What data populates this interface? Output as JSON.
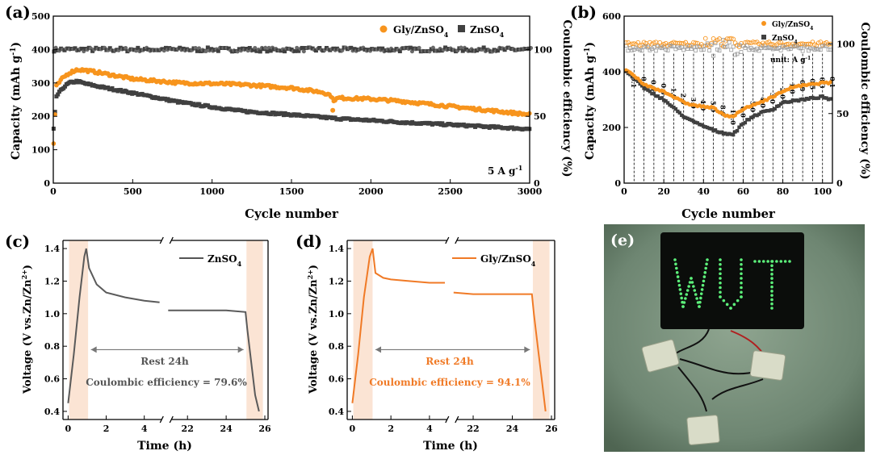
{
  "colors": {
    "gly": "#f7941d",
    "znso4": "#404040",
    "rest": "#fbe4d4",
    "grid": "#000000"
  },
  "panel_a": {
    "label": "(a)",
    "xlabel": "Cycle number",
    "ylabel_left": "Capacity (mAh g",
    "ylabel_left_sup": "-1",
    "ylabel_left_end": ")",
    "ylabel_right": "Coulombic efficiency (%)",
    "rate_label": "5 A g",
    "rate_sup": "-1",
    "legend": [
      {
        "name": "Gly/ZnSO",
        "sub": "4"
      },
      {
        "name": "ZnSO",
        "sub": "4"
      }
    ]
  },
  "panel_b": {
    "label": "(b)",
    "xlabel": "Cycle number",
    "ylabel_left": "Capacity (mAh g",
    "ylabel_left_sup": "-1",
    "ylabel_left_end": ")",
    "ylabel_right": "Coulombic efficiency (%)",
    "unit_note": "unit: A g",
    "unit_sup": "-1",
    "legend": [
      {
        "name": "Gly/ZnSO",
        "sub": "4"
      },
      {
        "name": "ZnSO",
        "sub": "4"
      }
    ]
  },
  "panel_c": {
    "label": "(c)",
    "xlabel": "Time (h)",
    "ylabel": "Voltage (V vs.Zn/Zn",
    "ylabel_sup": "2+",
    "ylabel_end": ")",
    "legend": {
      "name": "ZnSO",
      "sub": "4"
    },
    "rest_label": "Rest 24h",
    "ce_label": "Coulombic efficiency = 79.6%"
  },
  "panel_d": {
    "label": "(d)",
    "xlabel": "Time (h)",
    "ylabel": "Voltage (V vs.Zn/Zn",
    "ylabel_sup": "2+",
    "ylabel_end": ")",
    "legend": {
      "name": "Gly/ZnSO",
      "sub": "4"
    },
    "rest_label": "Rest 24h",
    "ce_label": "Coulombic efficiency = 94.1%"
  },
  "panel_e": {
    "label": "(e)",
    "sign_text": "WUT"
  },
  "chart_data": [
    {
      "panel": "a",
      "type": "scatter",
      "xlim": [
        0,
        3000
      ],
      "ylim": [
        0,
        500
      ],
      "y2lim": [
        0,
        125
      ],
      "xticks": [
        0,
        500,
        1000,
        1500,
        2000,
        2500,
        3000
      ],
      "yticks": [
        0,
        100,
        200,
        300,
        400,
        500
      ],
      "y2ticks": [
        0,
        50,
        100
      ],
      "series": [
        {
          "name": "Gly/ZnSO4",
          "axis": "capacity",
          "x": [
            0,
            20,
            60,
            100,
            150,
            200,
            300,
            500,
            800,
            1000,
            1200,
            1500,
            1700,
            1750,
            1760,
            1800,
            2000,
            2200,
            2500,
            2800,
            3000
          ],
          "y": [
            100,
            290,
            315,
            330,
            340,
            338,
            330,
            312,
            300,
            298,
            295,
            285,
            272,
            262,
            248,
            255,
            252,
            245,
            230,
            215,
            205
          ]
        },
        {
          "name": "ZnSO4",
          "axis": "capacity",
          "x": [
            0,
            20,
            60,
            100,
            150,
            200,
            300,
            500,
            800,
            1000,
            1200,
            1500,
            1800,
            2000,
            2200,
            2500,
            2800,
            3000
          ],
          "y": [
            150,
            260,
            285,
            300,
            305,
            298,
            288,
            270,
            242,
            228,
            215,
            205,
            193,
            188,
            182,
            175,
            167,
            162
          ]
        },
        {
          "name": "Gly/ZnSO4 CE",
          "axis": "ce",
          "x": [
            0,
            3000
          ],
          "y": [
            100,
            100
          ]
        },
        {
          "name": "ZnSO4 CE",
          "axis": "ce",
          "x": [
            0,
            3000
          ],
          "y": [
            100,
            100
          ]
        }
      ],
      "outlier": {
        "x": 1760,
        "y": 218
      }
    },
    {
      "panel": "b",
      "type": "scatter",
      "xlim": [
        0,
        105
      ],
      "ylim": [
        0,
        600
      ],
      "y2lim": [
        0,
        120
      ],
      "xticks": [
        0,
        20,
        40,
        60,
        80,
        100
      ],
      "yticks": [
        0,
        200,
        400,
        600
      ],
      "y2ticks": [
        0,
        50,
        100
      ],
      "rates": [
        "0.1",
        "0.3",
        "0.5",
        "0.8",
        "1.0",
        "2.0",
        "3.0",
        "4.0",
        "5.0",
        "8.0",
        "10.0",
        "8.0",
        "5.0",
        "4.0",
        "3.0",
        "2.0",
        "1.0",
        "0.8",
        "0.5",
        "0.3",
        "0.1"
      ],
      "series": [
        {
          "name": "Gly/ZnSO4",
          "axis": "capacity",
          "x": [
            1,
            5,
            10,
            15,
            20,
            25,
            30,
            35,
            40,
            45,
            50,
            55,
            60,
            65,
            70,
            75,
            80,
            85,
            90,
            95,
            100,
            104
          ],
          "y": [
            405,
            385,
            355,
            340,
            330,
            310,
            290,
            280,
            275,
            270,
            245,
            240,
            265,
            280,
            295,
            310,
            330,
            345,
            350,
            355,
            360,
            360
          ]
        },
        {
          "name": "ZnSO4",
          "axis": "capacity",
          "x": [
            1,
            5,
            10,
            15,
            20,
            25,
            30,
            35,
            40,
            45,
            50,
            55,
            60,
            65,
            70,
            75,
            80,
            85,
            90,
            95,
            100,
            104
          ],
          "y": [
            400,
            380,
            340,
            320,
            300,
            270,
            240,
            220,
            205,
            190,
            180,
            175,
            215,
            240,
            255,
            265,
            290,
            295,
            300,
            305,
            310,
            300
          ]
        },
        {
          "name": "Gly/ZnSO4 CE",
          "axis": "ce",
          "x": [
            0,
            105
          ],
          "y": [
            100,
            100
          ]
        },
        {
          "name": "ZnSO4 CE",
          "axis": "ce",
          "x": [
            0,
            105
          ],
          "y": [
            97,
            97
          ]
        }
      ]
    },
    {
      "panel": "c",
      "type": "line",
      "xticks": [
        "0",
        "2",
        "4",
        "22",
        "24",
        "26"
      ],
      "yticks": [
        0.4,
        0.6,
        0.8,
        1.0,
        1.2,
        1.4
      ],
      "ylim": [
        0.35,
        1.45
      ],
      "series": [
        {
          "name": "ZnSO4",
          "x": [
            0,
            0.3,
            0.6,
            0.85,
            0.95,
            1.1,
            1.5,
            2.0,
            3.0,
            4.0,
            4.8
          ],
          "y": [
            0.45,
            0.75,
            1.1,
            1.35,
            1.4,
            1.28,
            1.18,
            1.13,
            1.1,
            1.08,
            1.07
          ],
          "x2": [
            21,
            22,
            23,
            24,
            25,
            25.1,
            25.3,
            25.5,
            25.7
          ],
          "y2": [
            1.02,
            1.02,
            1.02,
            1.02,
            1.01,
            0.9,
            0.7,
            0.5,
            0.4
          ]
        }
      ]
    },
    {
      "panel": "d",
      "type": "line",
      "xticks": [
        "0",
        "2",
        "4",
        "22",
        "24",
        "26"
      ],
      "yticks": [
        0.4,
        0.6,
        0.8,
        1.0,
        1.2,
        1.4
      ],
      "ylim": [
        0.35,
        1.45
      ],
      "series": [
        {
          "name": "Gly/ZnSO4",
          "x": [
            0,
            0.3,
            0.6,
            0.9,
            1.05,
            1.2,
            1.6,
            2.0,
            3.0,
            4.0,
            4.8
          ],
          "y": [
            0.45,
            0.75,
            1.1,
            1.35,
            1.4,
            1.25,
            1.22,
            1.21,
            1.2,
            1.19,
            1.19
          ],
          "x2": [
            21,
            22,
            23,
            24,
            25,
            25.1,
            25.3,
            25.5,
            25.7
          ],
          "y2": [
            1.13,
            1.12,
            1.12,
            1.12,
            1.12,
            1.0,
            0.8,
            0.6,
            0.4
          ]
        }
      ]
    }
  ]
}
